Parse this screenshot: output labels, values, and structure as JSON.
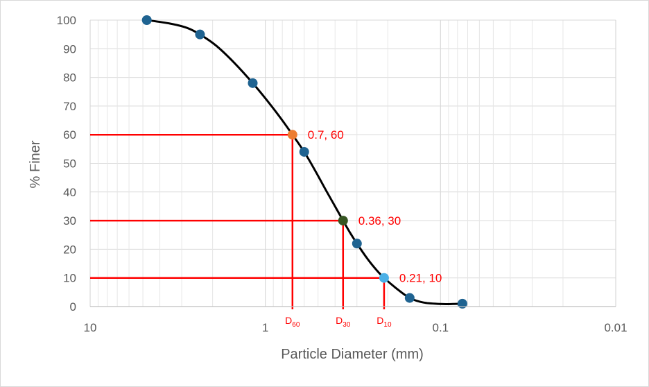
{
  "chart_data": {
    "type": "scatter",
    "title": "",
    "xlabel": "Particle Diameter (mm)",
    "ylabel": "% Finer",
    "x_scale": "log",
    "x_reversed": true,
    "xlim": [
      10,
      0.01
    ],
    "ylim": [
      0,
      100
    ],
    "x_ticks": [
      "10",
      "1",
      "0.1",
      "0.01"
    ],
    "y_ticks": [
      "0",
      "10",
      "20",
      "30",
      "40",
      "50",
      "60",
      "70",
      "80",
      "90",
      "100"
    ],
    "grid": true,
    "series": [
      {
        "color": "#1f6391",
        "x": [
          4.75,
          2.36,
          1.18,
          0.6,
          0.3,
          0.15,
          0.075
        ],
        "y": [
          100,
          95,
          78,
          54,
          22,
          3,
          1
        ]
      }
    ],
    "highlights": [
      {
        "label": "0.7, 60",
        "x": 0.7,
        "y": 60,
        "color": "#ed7d31",
        "d_main": "D",
        "d_sub": "60"
      },
      {
        "label": "0.36, 30",
        "x": 0.36,
        "y": 30,
        "color": "#375623",
        "d_main": "D",
        "d_sub": "30"
      },
      {
        "label": "0.21, 10",
        "x": 0.21,
        "y": 10,
        "color": "#4ab0e6",
        "d_main": "D",
        "d_sub": "10"
      }
    ],
    "curve": [
      [
        4.75,
        100
      ],
      [
        3.5,
        98.8
      ],
      [
        2.8,
        97.3
      ],
      [
        2.36,
        95
      ],
      [
        1.9,
        91
      ],
      [
        1.5,
        85
      ],
      [
        1.18,
        78
      ],
      [
        0.95,
        71
      ],
      [
        0.8,
        65
      ],
      [
        0.7,
        60
      ],
      [
        0.6,
        54
      ],
      [
        0.52,
        47.5
      ],
      [
        0.45,
        40.5
      ],
      [
        0.4,
        35
      ],
      [
        0.36,
        30
      ],
      [
        0.33,
        26
      ],
      [
        0.3,
        22
      ],
      [
        0.26,
        16.5
      ],
      [
        0.23,
        12.5
      ],
      [
        0.21,
        10
      ],
      [
        0.18,
        6.5
      ],
      [
        0.15,
        3
      ],
      [
        0.125,
        1.4
      ],
      [
        0.1,
        0.9
      ],
      [
        0.085,
        0.9
      ],
      [
        0.075,
        1
      ]
    ],
    "colors": {
      "guide": "#ff0000",
      "curve": "#000000",
      "grid": "#d9d9d9"
    }
  }
}
